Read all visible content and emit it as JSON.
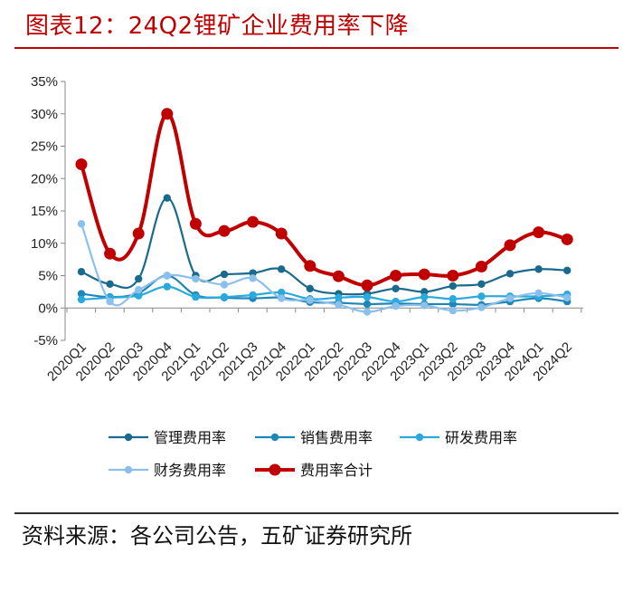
{
  "figure": {
    "title": "图表12：24Q2锂矿企业费用率下降",
    "source": "资料来源：各公司公告，五矿证券研究所"
  },
  "chart_data": {
    "type": "line",
    "title": "",
    "xlabel": "",
    "ylabel": "",
    "ylim": [
      -5,
      35
    ],
    "yticks": [
      -5,
      0,
      5,
      10,
      15,
      20,
      25,
      30,
      35
    ],
    "ytick_labels": [
      "-5%",
      "0%",
      "5%",
      "10%",
      "15%",
      "20%",
      "25%",
      "30%",
      "35%"
    ],
    "categories": [
      "2020Q1",
      "2020Q2",
      "2020Q3",
      "2020Q4",
      "2021Q1",
      "2021Q2",
      "2021Q3",
      "2021Q4",
      "2022Q1",
      "2022Q2",
      "2022Q3",
      "2022Q4",
      "2023Q1",
      "2023Q2",
      "2023Q3",
      "2023Q4",
      "2024Q1",
      "2024Q2"
    ],
    "series": [
      {
        "name": "管理费用率",
        "color": "#1a6a8e",
        "width": 2.2,
        "values": [
          5.6,
          3.7,
          4.5,
          17.0,
          5.0,
          5.2,
          5.4,
          6.0,
          3.0,
          2.2,
          2.2,
          3.0,
          2.5,
          3.4,
          3.7,
          5.3,
          6.0,
          5.8
        ]
      },
      {
        "name": "销售费用率",
        "color": "#1f87b8",
        "width": 2.2,
        "values": [
          2.2,
          1.7,
          2.3,
          5.0,
          2.0,
          1.6,
          1.5,
          1.6,
          0.9,
          0.8,
          0.6,
          0.7,
          0.6,
          0.6,
          0.5,
          1.0,
          1.5,
          1.0
        ]
      },
      {
        "name": "研发费用率",
        "color": "#2aa9dc",
        "width": 2.2,
        "values": [
          1.3,
          1.6,
          1.9,
          3.3,
          1.7,
          1.7,
          2.0,
          2.4,
          1.4,
          1.6,
          1.7,
          1.0,
          1.7,
          1.4,
          1.8,
          1.8,
          1.8,
          2.1
        ]
      },
      {
        "name": "财务费用率",
        "color": "#8cc0ec",
        "width": 2.2,
        "values": [
          13.0,
          1.0,
          2.8,
          5.0,
          4.5,
          3.6,
          4.6,
          1.5,
          1.2,
          0.5,
          -0.6,
          0.3,
          0.4,
          -0.4,
          0.1,
          1.5,
          2.3,
          1.6
        ]
      },
      {
        "name": "费用率合计",
        "color": "#c00000",
        "width": 4.0,
        "values": [
          22.2,
          8.4,
          11.5,
          30.0,
          13.0,
          11.9,
          13.3,
          11.5,
          6.5,
          4.9,
          3.5,
          5.0,
          5.2,
          5.0,
          6.4,
          9.7,
          11.7,
          10.6
        ]
      }
    ],
    "legend_position": "bottom"
  }
}
